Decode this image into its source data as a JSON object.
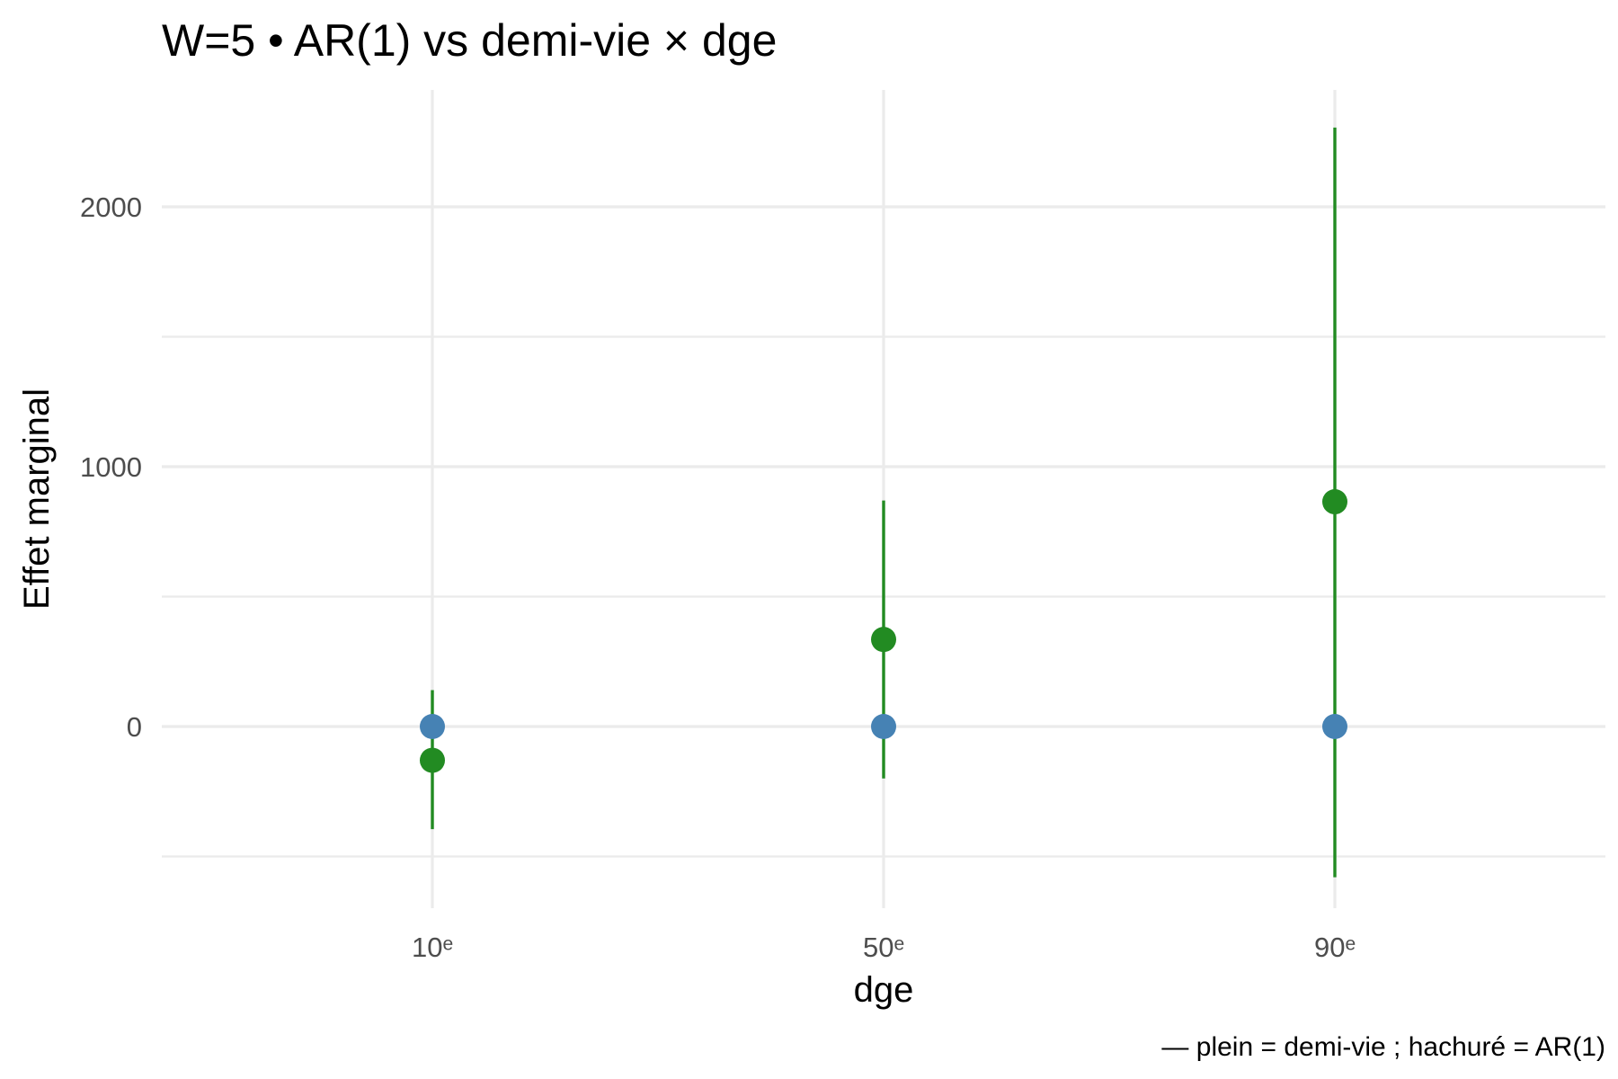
{
  "chart_data": {
    "type": "scatter",
    "title": "W=5 • AR(1) vs demi-vie × dge",
    "xlabel": "dge",
    "ylabel": "Effet marginal",
    "caption": "— plein = demi-vie ; hachuré = AR(1)",
    "categories": [
      "10ᵉ",
      "50ᵉ",
      "90ᵉ"
    ],
    "ylim": [
      -700,
      2450
    ],
    "yticks": [
      0,
      1000,
      2000
    ],
    "grid": true,
    "legend": "none",
    "series": [
      {
        "color": "#228b22",
        "values": [
          -130,
          335,
          865
        ],
        "lower": [
          -395,
          -200,
          -580
        ],
        "upper": [
          140,
          870,
          2305
        ]
      },
      {
        "color": "#4682b4",
        "values": [
          0,
          0,
          0
        ]
      }
    ]
  }
}
